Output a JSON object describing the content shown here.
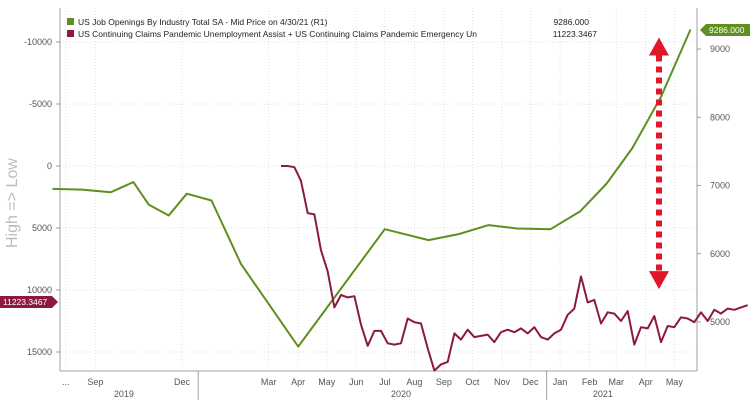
{
  "chart_data": {
    "type": "line",
    "ylabel": "High => Low",
    "legend_position": "top-left",
    "grid": true,
    "x_ticks": [
      "...",
      "Sep",
      "Dec",
      "Mar",
      "Apr",
      "May",
      "Jun",
      "Jul",
      "Aug",
      "Sep",
      "Oct",
      "Nov",
      "Dec",
      "Jan",
      "Feb",
      "Mar",
      "Apr",
      "May"
    ],
    "x_years": [
      "2019",
      "2020",
      "2021"
    ],
    "left_axis": {
      "ticks": [
        "-10000",
        "-5000",
        "0",
        "5000",
        "10000",
        "15000"
      ],
      "range": [
        -15000,
        17000
      ],
      "inverted": true
    },
    "right_axis": {
      "ticks": [
        "9000",
        "8000",
        "7000",
        "6000",
        "5000"
      ],
      "range": [
        4400,
        9700
      ]
    },
    "series": [
      {
        "name": "US Job Openings By Industry Total SA - Mid Price on 4/30/21 (R1)",
        "last_value": "9286.000",
        "color": "#5f8f1f",
        "axis": "right",
        "points": [
          [
            "2019-08-01",
            6950
          ],
          [
            "2019-09-01",
            6940
          ],
          [
            "2019-10-01",
            6900
          ],
          [
            "2019-10-25",
            7050
          ],
          [
            "2019-11-10",
            6720
          ],
          [
            "2019-12-01",
            6560
          ],
          [
            "2019-12-20",
            6880
          ],
          [
            "2020-01-15",
            6780
          ],
          [
            "2020-02-15",
            5850
          ],
          [
            "2020-04-15",
            4640
          ],
          [
            "2020-07-15",
            6360
          ],
          [
            "2020-08-30",
            6200
          ],
          [
            "2020-10-01",
            6290
          ],
          [
            "2020-11-01",
            6420
          ],
          [
            "2020-12-01",
            6370
          ],
          [
            "2021-01-05",
            6360
          ],
          [
            "2021-02-05",
            6620
          ],
          [
            "2021-03-05",
            7030
          ],
          [
            "2021-04-01",
            7550
          ],
          [
            "2021-05-01",
            8300
          ],
          [
            "2021-06-01",
            9286
          ]
        ]
      },
      {
        "name": "US Continuing Claims Pandemic Unemployment Assist + US Continuing Claims Pandemic Emergency Un",
        "last_value": "11223.3467",
        "color": "#8c1a40",
        "axis": "left",
        "points": [
          [
            "2020-03-28",
            0
          ],
          [
            "2020-04-04",
            0
          ],
          [
            "2020-04-11",
            100
          ],
          [
            "2020-04-18",
            1200
          ],
          [
            "2020-04-25",
            3800
          ],
          [
            "2020-05-02",
            3900
          ],
          [
            "2020-05-09",
            6800
          ],
          [
            "2020-05-16",
            8500
          ],
          [
            "2020-05-23",
            11400
          ],
          [
            "2020-05-30",
            10400
          ],
          [
            "2020-06-06",
            10600
          ],
          [
            "2020-06-13",
            10500
          ],
          [
            "2020-06-20",
            12800
          ],
          [
            "2020-06-27",
            14500
          ],
          [
            "2020-07-04",
            13300
          ],
          [
            "2020-07-11",
            13300
          ],
          [
            "2020-07-18",
            14300
          ],
          [
            "2020-07-25",
            14400
          ],
          [
            "2020-08-01",
            14300
          ],
          [
            "2020-08-08",
            12300
          ],
          [
            "2020-08-15",
            12600
          ],
          [
            "2020-08-22",
            12700
          ],
          [
            "2020-08-29",
            14700
          ],
          [
            "2020-09-05",
            16500
          ],
          [
            "2020-09-12",
            16000
          ],
          [
            "2020-09-19",
            15800
          ],
          [
            "2020-09-26",
            13500
          ],
          [
            "2020-10-03",
            14000
          ],
          [
            "2020-10-10",
            13200
          ],
          [
            "2020-10-17",
            13800
          ],
          [
            "2020-10-24",
            13700
          ],
          [
            "2020-10-31",
            13600
          ],
          [
            "2020-11-07",
            14200
          ],
          [
            "2020-11-14",
            13400
          ],
          [
            "2020-11-21",
            13200
          ],
          [
            "2020-11-28",
            13400
          ],
          [
            "2020-12-05",
            13100
          ],
          [
            "2020-12-12",
            13500
          ],
          [
            "2020-12-19",
            13000
          ],
          [
            "2020-12-26",
            13800
          ],
          [
            "2021-01-02",
            14000
          ],
          [
            "2021-01-09",
            13500
          ],
          [
            "2021-01-16",
            13200
          ],
          [
            "2021-01-23",
            12000
          ],
          [
            "2021-01-30",
            11500
          ],
          [
            "2021-02-06",
            8900
          ],
          [
            "2021-02-13",
            11000
          ],
          [
            "2021-02-20",
            10800
          ],
          [
            "2021-02-27",
            12700
          ],
          [
            "2021-03-06",
            11800
          ],
          [
            "2021-03-13",
            11900
          ],
          [
            "2021-03-20",
            12500
          ],
          [
            "2021-03-27",
            11700
          ],
          [
            "2021-04-03",
            14400
          ],
          [
            "2021-04-10",
            13000
          ],
          [
            "2021-04-17",
            13100
          ],
          [
            "2021-04-24",
            12100
          ],
          [
            "2021-05-01",
            14200
          ],
          [
            "2021-05-08",
            12900
          ],
          [
            "2021-05-15",
            13000
          ],
          [
            "2021-05-22",
            12200
          ],
          [
            "2021-05-29",
            12300
          ],
          [
            "2021-06-05",
            12600
          ],
          [
            "2021-06-12",
            11800
          ],
          [
            "2021-06-19",
            12500
          ],
          [
            "2021-06-26",
            11600
          ],
          [
            "2021-07-03",
            11900
          ],
          [
            "2021-07-10",
            11500
          ],
          [
            "2021-07-17",
            11600
          ],
          [
            "2021-07-24",
            11400
          ],
          [
            "2021-07-31",
            11223
          ]
        ]
      }
    ],
    "annotation": {
      "type": "double-arrow",
      "color": "#e0162b",
      "from_value": 9286,
      "to_value": 11223.3467
    }
  }
}
